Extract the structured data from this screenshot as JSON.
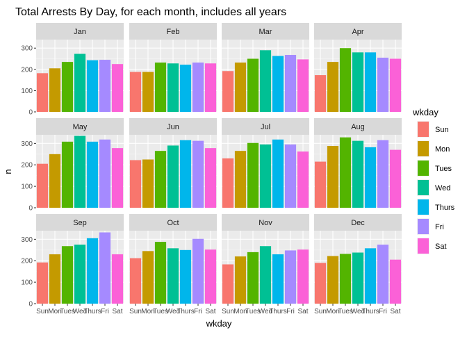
{
  "chart_data": {
    "type": "bar",
    "title": "Total Arrests By Day, for each month, includes all years",
    "xlabel": "wkday",
    "ylabel": "n",
    "ylim": [
      0,
      340
    ],
    "yticks": [
      0,
      100,
      200,
      300
    ],
    "grid": true,
    "legend": {
      "title": "wkday",
      "position": "right"
    },
    "categories": [
      "Sun",
      "Mon",
      "Tues",
      "Wed",
      "Thurs",
      "Fri",
      "Sat"
    ],
    "colors": [
      "#F8766D",
      "#C49A00",
      "#53B400",
      "#00C094",
      "#00B6EB",
      "#A58AFF",
      "#FB61D7"
    ],
    "panels": [
      {
        "month": "Jan",
        "values": [
          182,
          205,
          235,
          273,
          243,
          245,
          225
        ]
      },
      {
        "month": "Feb",
        "values": [
          188,
          188,
          232,
          228,
          222,
          232,
          228
        ]
      },
      {
        "month": "Mar",
        "values": [
          192,
          232,
          250,
          290,
          263,
          268,
          247
        ]
      },
      {
        "month": "Apr",
        "values": [
          173,
          235,
          300,
          280,
          280,
          255,
          250
        ]
      },
      {
        "month": "May",
        "values": [
          205,
          250,
          308,
          335,
          308,
          318,
          278
        ]
      },
      {
        "month": "Jun",
        "values": [
          222,
          225,
          265,
          290,
          315,
          312,
          278
        ]
      },
      {
        "month": "Jul",
        "values": [
          230,
          265,
          302,
          295,
          318,
          295,
          262
        ]
      },
      {
        "month": "Aug",
        "values": [
          215,
          288,
          328,
          312,
          282,
          315,
          270
        ]
      },
      {
        "month": "Sep",
        "values": [
          192,
          230,
          268,
          275,
          305,
          332,
          230
        ]
      },
      {
        "month": "Oct",
        "values": [
          212,
          245,
          288,
          258,
          250,
          302,
          252
        ]
      },
      {
        "month": "Nov",
        "values": [
          183,
          220,
          240,
          268,
          230,
          248,
          252
        ]
      },
      {
        "month": "Dec",
        "values": [
          190,
          222,
          232,
          238,
          258,
          275,
          205
        ]
      }
    ]
  }
}
